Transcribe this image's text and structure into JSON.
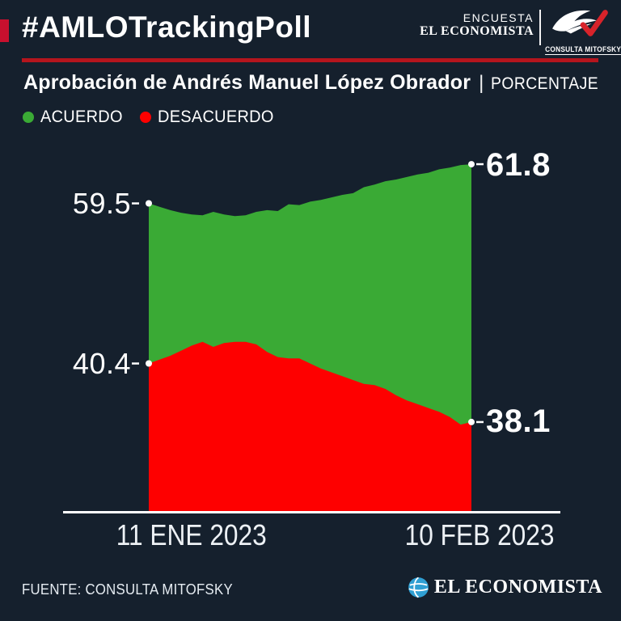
{
  "header": {
    "hashtag": "#AMLOTrackingPoll",
    "brand_top": "ENCUESTA",
    "brand_bottom": "EL ECONOMISTA",
    "partner_name": "CONSULTA MITOFSKY"
  },
  "title": {
    "main": "Aprobación de Andrés Manuel López Obrador",
    "separator": "|",
    "unit": "PORCENTAJE"
  },
  "legend": [
    {
      "label": "ACUERDO",
      "color": "#3aaa35"
    },
    {
      "label": "DESACUERDO",
      "color": "#fe0000"
    }
  ],
  "footer": {
    "source": "FUENTE: CONSULTA MITOFSKY",
    "brand": "EL ECONOMISTA"
  },
  "colors": {
    "background": "#15202d",
    "accent_red": "#c8102e",
    "rule_red": "#b5151d",
    "acuerdo_green": "#3aaa35",
    "desacuerdo_red": "#fe0000",
    "axis_white": "#ffffff",
    "economista_blue": "#2f9fd3"
  },
  "chart_data": {
    "type": "area",
    "title": "Aprobación de Andrés Manuel López Obrador (PORCENTAJE)",
    "xlabel": "",
    "ylabel": "",
    "x_start_label": "11 ENE 2023",
    "x_end_label": "10 FEB 2023",
    "x_points": 31,
    "grid": false,
    "legend_position": "top-left",
    "series": [
      {
        "name": "ACUERDO",
        "color": "#3aaa35",
        "start_value": 59.5,
        "end_value": 61.8,
        "values": [
          59.5,
          59.3,
          59.1,
          58.95,
          58.85,
          58.8,
          59.0,
          58.85,
          58.75,
          58.8,
          59.0,
          59.1,
          59.05,
          59.45,
          59.4,
          59.6,
          59.7,
          59.85,
          60.0,
          60.1,
          60.45,
          60.6,
          60.8,
          60.9,
          61.05,
          61.2,
          61.3,
          61.5,
          61.6,
          61.75,
          61.8
        ]
      },
      {
        "name": "DESACUERDO",
        "color": "#fe0000",
        "start_value": 40.4,
        "end_value": 38.1,
        "values": [
          40.4,
          40.55,
          40.7,
          40.9,
          41.1,
          41.25,
          41.05,
          41.2,
          41.25,
          41.25,
          41.15,
          40.85,
          40.65,
          40.6,
          40.6,
          40.4,
          40.2,
          40.05,
          39.9,
          39.75,
          39.6,
          39.55,
          39.4,
          39.15,
          38.95,
          38.8,
          38.65,
          38.5,
          38.3,
          38.0,
          38.1
        ]
      }
    ],
    "value_labels": {
      "acuerdo_start": "59.5",
      "acuerdo_end": "61.8",
      "desacuerdo_start": "40.4",
      "desacuerdo_end": "38.1"
    }
  }
}
